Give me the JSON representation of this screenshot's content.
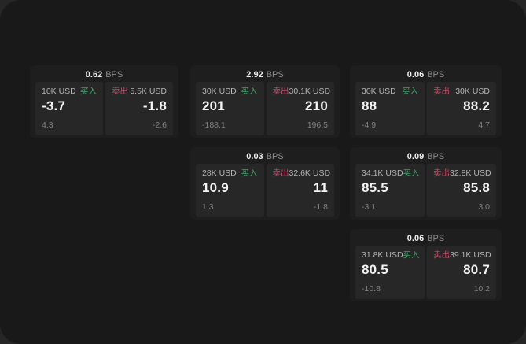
{
  "labels": {
    "bps_unit": "BPS",
    "buy": "买入",
    "sell": "卖出"
  },
  "colors": {
    "buy_green": "#3aa468",
    "sell_red": "#c44a66"
  },
  "cards": [
    {
      "bps": "0.62",
      "buy": {
        "amount": "10K USD",
        "value": "-3.7",
        "sub": "4.3"
      },
      "sell": {
        "amount": "5.5K USD",
        "value": "-1.8",
        "sub": "-2.6"
      }
    },
    {
      "bps": "2.92",
      "buy": {
        "amount": "30K USD",
        "value": "201",
        "sub": "-188.1"
      },
      "sell": {
        "amount": "30.1K USD",
        "value": "210",
        "sub": "196.5"
      }
    },
    {
      "bps": "0.06",
      "buy": {
        "amount": "30K USD",
        "value": "88",
        "sub": "-4.9"
      },
      "sell": {
        "amount": "30K USD",
        "value": "88.2",
        "sub": "4.7"
      }
    },
    {
      "bps": "0.03",
      "buy": {
        "amount": "28K USD",
        "value": "10.9",
        "sub": "1.3"
      },
      "sell": {
        "amount": "32.6K USD",
        "value": "11",
        "sub": "-1.8"
      }
    },
    {
      "bps": "0.09",
      "buy": {
        "amount": "34.1K USD",
        "value": "85.5",
        "sub": "-3.1"
      },
      "sell": {
        "amount": "32.8K USD",
        "value": "85.8",
        "sub": "3.0"
      }
    },
    {
      "bps": "0.06",
      "buy": {
        "amount": "31.8K USD",
        "value": "80.5",
        "sub": "-10.8"
      },
      "sell": {
        "amount": "39.1K USD",
        "value": "80.7",
        "sub": "10.2"
      }
    }
  ]
}
